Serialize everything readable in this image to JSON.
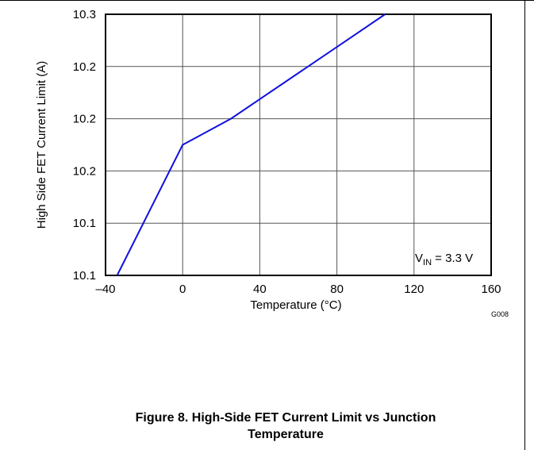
{
  "chart_data": {
    "type": "line",
    "xlabel": "Temperature (°C)",
    "ylabel": "High  Side FET Current Limit (A)",
    "xlim": [
      -40,
      160
    ],
    "ylim": [
      10.1,
      10.3
    ],
    "x_ticks": [
      -40,
      0,
      40,
      80,
      120,
      160
    ],
    "x_tick_labels": [
      "–40",
      "0",
      "40",
      "80",
      "120",
      "160"
    ],
    "y_tick_labels": [
      "10.3",
      "10.2",
      "10.2",
      "10.2",
      "10.1",
      "10.1"
    ],
    "grid": true,
    "series": [
      {
        "x": [
          -34,
          0,
          25,
          85,
          105
        ],
        "y": [
          10.1,
          10.2,
          10.22,
          10.28,
          10.3
        ]
      }
    ],
    "annotation": {
      "text_main": "V",
      "text_sub": "IN",
      "text_rest": " = 3.3 V"
    },
    "figure_code": "G008",
    "line_color": "#1010e0"
  },
  "caption": {
    "line1": "Figure 8. High-Side FET Current Limit vs Junction",
    "line2": "Temperature"
  }
}
